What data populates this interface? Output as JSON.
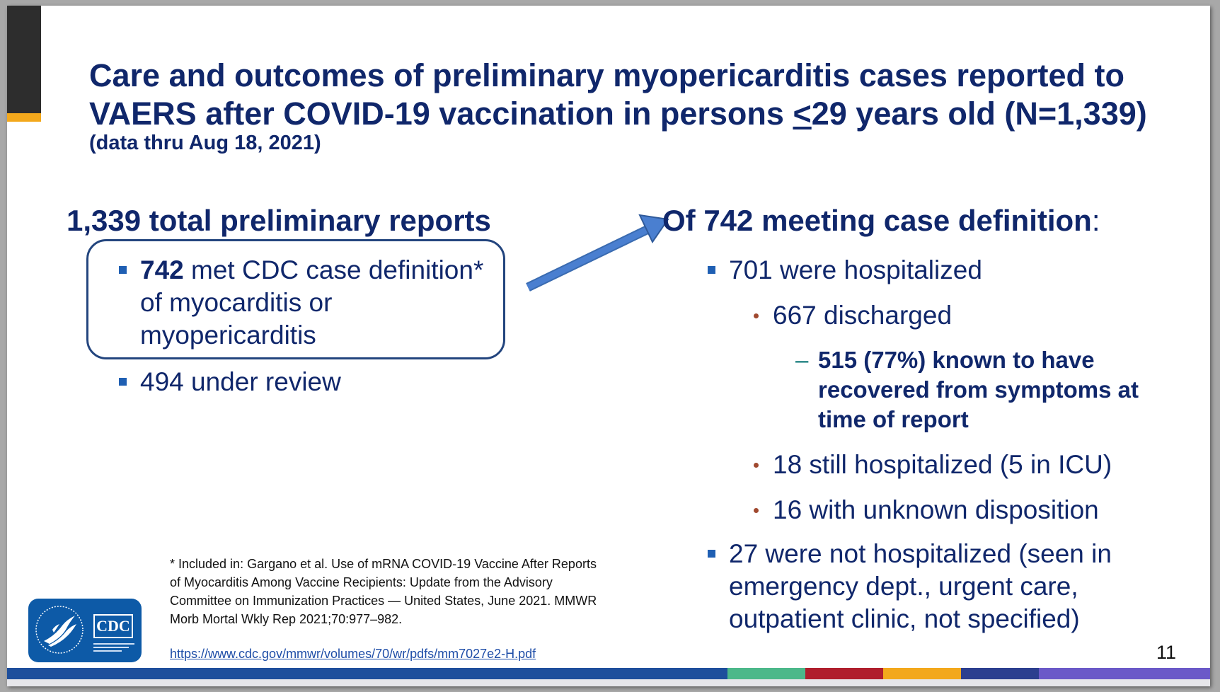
{
  "title": {
    "part1": "Care and outcomes of preliminary myopericarditis cases reported to VAERS after COVID-19 vaccination in persons ",
    "underlined": "<",
    "part2": "29 years old (N=1,339)",
    "subtitle": "(data thru Aug 18, 2021)"
  },
  "left": {
    "heading": "1,339 total preliminary reports",
    "item1_bold": "742",
    "item1_rest": " met CDC case definition* of myocarditis or myopericarditis",
    "item2": "494 under review"
  },
  "right": {
    "heading": "Of 742 meeting case definition",
    "heading_colon": ":",
    "items": [
      "701 were hospitalized",
      "667 discharged",
      "515 (77%) known to have recovered from symptoms at time of report",
      "18 still hospitalized (5 in ICU)",
      "16 with unknown disposition",
      "27 were not hospitalized (seen in emergency dept., urgent care, outpatient clinic, not specified)"
    ],
    "dash": "–"
  },
  "footnote": {
    "text": "* Included in: Gargano et al. Use of mRNA COVID-19 Vaccine After Reports of Myocarditis Among Vaccine Recipients: Update from the Advisory Committee on Immunization Practices — United States, June 2021. MMWR Morb Mortal Wkly Rep 2021;70:977–982.",
    "link": "https://www.cdc.gov/mmwr/volumes/70/wr/pdfs/mm7027e2-H.pdf"
  },
  "logo": {
    "text": "CDC",
    "icon": "cdc-logo"
  },
  "page_number": "11",
  "colors": {
    "navy": "#10276b",
    "bullet_blue": "#1f5fb3",
    "bullet_rust": "#a0492f",
    "dash_teal": "#127a7a",
    "accent_gold": "#f3a81c",
    "band": [
      "#1e4f9c",
      "#4cb88a",
      "#b01e2d",
      "#f3a81c",
      "#2c3f8f",
      "#6b59c8"
    ]
  }
}
